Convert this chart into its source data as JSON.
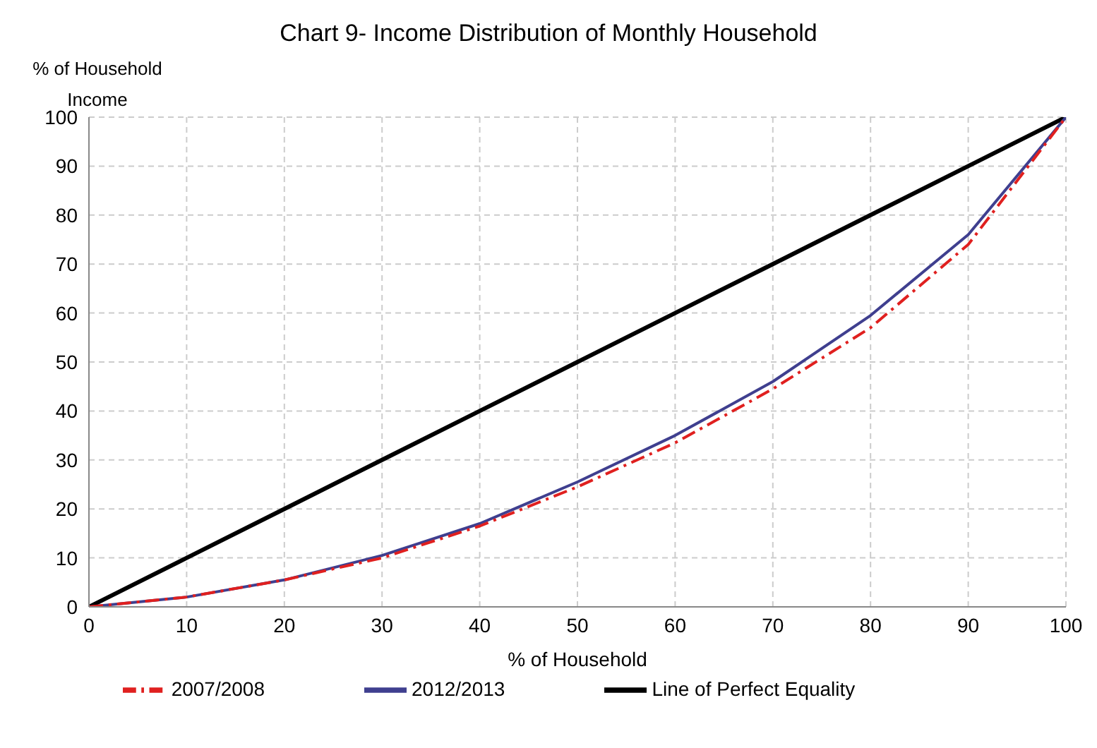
{
  "chart_data": {
    "type": "line",
    "title": "Chart 9- Income Distribution of Monthly Household",
    "xlabel": "% of Household",
    "ylabel": "% of Household Income",
    "x": [
      0,
      10,
      20,
      30,
      40,
      50,
      60,
      70,
      80,
      90,
      100
    ],
    "series": [
      {
        "name": "Line of Perfect Equality",
        "color": "#000000",
        "values": [
          0,
          10,
          20,
          30,
          40,
          50,
          60,
          70,
          80,
          90,
          100
        ],
        "line_style": "solid"
      },
      {
        "name": "2012/2013",
        "color": "#3f3f8f",
        "values": [
          0,
          2,
          5.5,
          10.5,
          17,
          25.5,
          35,
          46,
          59.5,
          76,
          100
        ],
        "line_style": "solid"
      },
      {
        "name": "2007/2008",
        "color": "#e0201f",
        "values": [
          0,
          2,
          5.5,
          10,
          16.5,
          24.5,
          33.5,
          44.5,
          57,
          74,
          100
        ],
        "line_style": "dashed"
      }
    ],
    "xlim": [
      0,
      100
    ],
    "xticks": [
      0,
      10,
      20,
      30,
      40,
      50,
      60,
      70,
      80,
      90,
      100
    ],
    "ylim": [
      0,
      100
    ],
    "yticks": [
      0,
      10,
      20,
      30,
      40,
      50,
      60,
      70,
      80,
      90,
      100
    ],
    "grid": true,
    "legend": "bottom",
    "marker": "none"
  }
}
